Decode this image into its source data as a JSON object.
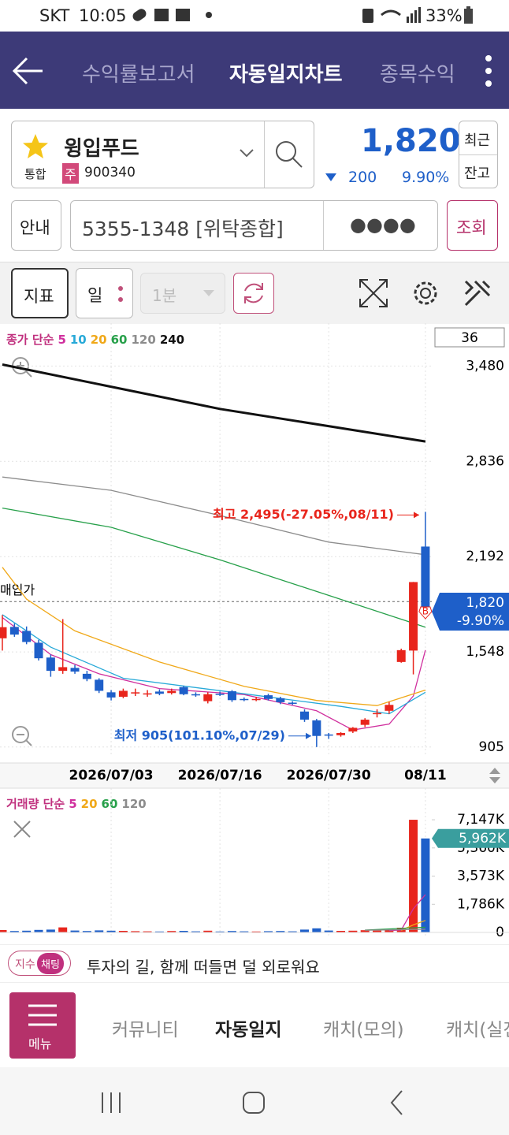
{
  "status_bar": {
    "carrier": "SKT",
    "time": "10:05",
    "battery": "33%"
  },
  "header": {
    "tabs": [
      "수익률보고서",
      "자동일지차트",
      "종목수익"
    ]
  },
  "stock": {
    "name": "윙입푸드",
    "market": "통합",
    "kind": "주",
    "code": "900340",
    "price": "1,820",
    "change": "200",
    "change_rate": "9.90%",
    "buttons": [
      "최근",
      "잔고"
    ]
  },
  "account": {
    "info": "안내",
    "number": "5355-1348 [위탁종합]",
    "password": "●●●●",
    "query": "조회"
  },
  "toolbar": {
    "indicator": "지표",
    "period": "일",
    "interval": "1분"
  },
  "chart_data": [
    {
      "type": "candlestick",
      "legend_title": "종가 단순",
      "period_count": "36",
      "categories": [
        null,
        null,
        null,
        null,
        null,
        null,
        null,
        null,
        null,
        "2026/07/03",
        null,
        null,
        null,
        null,
        null,
        null,
        null,
        null,
        "2026/07/16",
        null,
        null,
        null,
        null,
        null,
        null,
        null,
        null,
        "2026/07/30",
        null,
        null,
        null,
        null,
        null,
        null,
        null,
        "08/11"
      ],
      "open": [
        1640,
        1717,
        1690,
        1610,
        1510,
        1420,
        1440,
        1400,
        1360,
        1275,
        1245,
        1270,
        1265,
        1280,
        1270,
        1310,
        1262,
        1215,
        1265,
        1282,
        1230,
        1225,
        1255,
        1235,
        1205,
        1145,
        1085,
        990,
        985,
        1010,
        1055,
        1130,
        1150,
        1480,
        1557,
        2260
      ],
      "high": [
        1797,
        1740,
        1720,
        1630,
        1530,
        1770,
        1460,
        1420,
        1370,
        1290,
        1300,
        1300,
        1290,
        1295,
        1300,
        1318,
        1275,
        1275,
        1280,
        1290,
        1240,
        1245,
        1265,
        1245,
        1215,
        1160,
        1095,
        1000,
        1005,
        1040,
        1100,
        1160,
        1210,
        1570,
        2021,
        2495
      ],
      "low": [
        1557,
        1650,
        1600,
        1490,
        1380,
        1400,
        1400,
        1350,
        1270,
        1220,
        1235,
        1250,
        1245,
        1255,
        1260,
        1255,
        1245,
        1200,
        1250,
        1210,
        1215,
        1215,
        1220,
        1195,
        1190,
        1075,
        905,
        960,
        975,
        1000,
        1040,
        1105,
        1130,
        1475,
        1396,
        1800
      ],
      "close": [
        1715,
        1665,
        1615,
        1505,
        1420,
        1445,
        1415,
        1365,
        1285,
        1240,
        1285,
        1275,
        1268,
        1265,
        1285,
        1262,
        1258,
        1262,
        1262,
        1222,
        1222,
        1230,
        1230,
        1208,
        1200,
        1090,
        980,
        985,
        1000,
        1035,
        1090,
        1135,
        1190,
        1560,
        2020,
        1820
      ],
      "up_color": "#e8251c",
      "down_color": "#1e5fc9",
      "ylim": [
        840,
        3610
      ],
      "yticks": [
        905,
        {
          "value": 1548,
          "label": "1,548"
        },
        {
          "value": 2192,
          "label": "2,192"
        },
        {
          "value": 2836,
          "label": "2,836"
        },
        {
          "value": 3480,
          "label": "3,480"
        }
      ],
      "grid": true,
      "series": [
        {
          "name": "5",
          "color": "#d0309e",
          "x": [
            0,
            4,
            8,
            13,
            20,
            26,
            29,
            32,
            34,
            35
          ],
          "values": [
            1780,
            1530,
            1400,
            1300,
            1260,
            1150,
            1020,
            1060,
            1250,
            1560
          ]
        },
        {
          "name": "10",
          "color": "#27a9d8",
          "x": [
            0,
            4,
            10,
            20,
            28,
            32,
            35
          ],
          "values": [
            1800,
            1580,
            1370,
            1265,
            1180,
            1130,
            1275
          ]
        },
        {
          "name": "20",
          "color": "#f0a818",
          "x": [
            0,
            2,
            6,
            13,
            20,
            26,
            31,
            35
          ],
          "values": [
            2120,
            1905,
            1690,
            1480,
            1315,
            1220,
            1185,
            1290
          ]
        },
        {
          "name": "60",
          "color": "#27a04a",
          "x": [
            0,
            9,
            18,
            27,
            35
          ],
          "values": [
            2520,
            2390,
            2170,
            1930,
            1715
          ]
        },
        {
          "name": "120",
          "color": "#8c8c8c",
          "x": [
            0,
            9,
            18,
            27,
            35
          ],
          "values": [
            2730,
            2640,
            2470,
            2290,
            2205
          ]
        },
        {
          "name": "240",
          "color": "#111111",
          "x": [
            0,
            18,
            35
          ],
          "values": [
            3490,
            3190,
            2970
          ]
        }
      ],
      "reference_line": {
        "label": "매입가",
        "value": 1888
      },
      "marker": "B",
      "annotations": [
        {
          "text": "최고 2,495(-27.05%,08/11)",
          "value": 2495,
          "color": "#e8251c"
        },
        {
          "text": "최저 905(101.10%,07/29)",
          "value": 905,
          "color": "#1e5fc9"
        }
      ],
      "current": {
        "price": "1,820",
        "change": "-9.90%"
      }
    },
    {
      "type": "bar",
      "legend_title": "거래량 단순",
      "values": [
        150,
        90,
        110,
        160,
        180,
        320,
        120,
        90,
        130,
        110,
        100,
        80,
        70,
        60,
        90,
        100,
        70,
        110,
        60,
        90,
        70,
        60,
        80,
        90,
        70,
        180,
        260,
        120,
        100,
        110,
        140,
        120,
        160,
        300,
        7147,
        5962
      ],
      "value_labels": [
        null,
        null,
        null,
        null,
        null,
        null,
        null,
        null,
        null,
        null,
        null,
        null,
        null,
        null,
        null,
        null,
        null,
        null,
        null,
        null,
        null,
        null,
        null,
        null,
        null,
        null,
        null,
        null,
        null,
        null,
        null,
        null,
        null,
        null,
        null,
        "5,962K"
      ],
      "label_color": "#3a9e9e",
      "ylim": [
        0,
        8900
      ],
      "yticks": [
        0,
        {
          "value": 1786,
          "label": "1,786K"
        },
        {
          "value": 3573,
          "label": "3,573K"
        },
        {
          "value": 5360,
          "label": "5,360K"
        },
        {
          "value": 7147,
          "label": "7,147K"
        }
      ],
      "series": [
        {
          "name": "5",
          "color": "#d0309e",
          "x": [
            32,
            33,
            34,
            35
          ],
          "values": [
            120,
            150,
            1500,
            2400
          ]
        },
        {
          "name": "20",
          "color": "#f0a818",
          "x": [
            33,
            34,
            35
          ],
          "values": [
            130,
            480,
            760
          ]
        },
        {
          "name": "60",
          "color": "#27a04a",
          "x": [
            30,
            35
          ],
          "values": [
            150,
            330
          ]
        },
        {
          "name": "120",
          "color": "#8c8c8c",
          "x": [
            30,
            35
          ],
          "values": [
            140,
            200
          ]
        }
      ]
    }
  ],
  "banner": {
    "tags": [
      "지수",
      "채팅"
    ],
    "text": "투자의 길, 함께 떠들면 덜 외로워요"
  },
  "bottom_nav": {
    "menu": "메뉴",
    "items": [
      "커뮤니티",
      "자동일지",
      "캐치(모의)",
      "캐치(실전)"
    ]
  }
}
